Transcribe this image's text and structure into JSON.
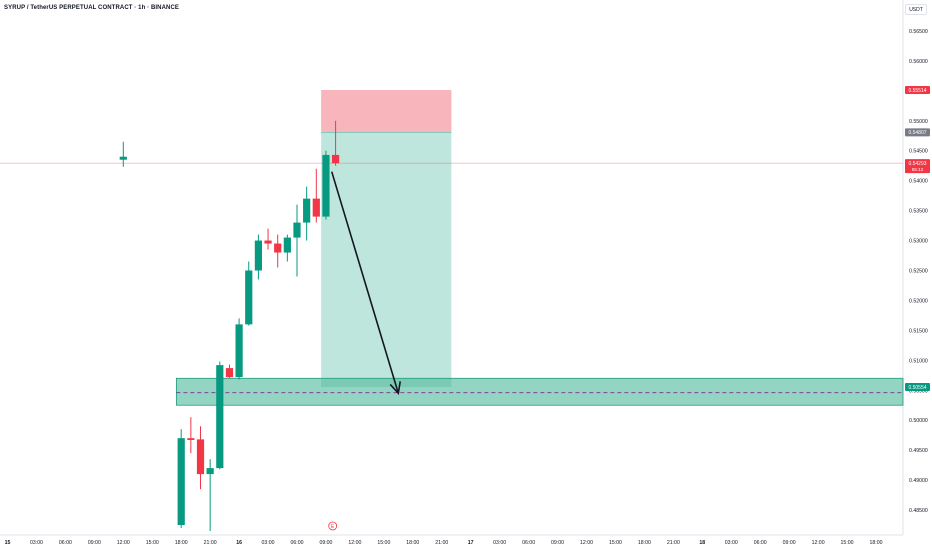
{
  "header": {
    "title": "SYRUP / TetherUS PERPETUAL CONTRACT · 1h · BINANCE",
    "currency": "USDT"
  },
  "price_tags": {
    "stop": "0.55514",
    "entry": "0.54807",
    "last_price": "0.54293",
    "last_countdown": "55:12",
    "target": "0.50554"
  },
  "event_marker": "E",
  "chart_data": {
    "type": "candlestick",
    "title": "SYRUP / TetherUS PERPETUAL CONTRACT · 1h · BINANCE",
    "ylim": [
      0.4825,
      0.5685
    ],
    "y_ticks": [
      "0.56500",
      "0.56000",
      "0.55500",
      "0.55000",
      "0.54500",
      "0.54000",
      "0.53500",
      "0.53000",
      "0.52500",
      "0.52000",
      "0.51500",
      "0.51000",
      "0.50500",
      "0.50000",
      "0.49500",
      "0.49000",
      "0.48500"
    ],
    "x_ticks": [
      "15",
      "03:00",
      "06:00",
      "09:00",
      "12:00",
      "15:00",
      "18:00",
      "21:00",
      "16",
      "03:00",
      "06:00",
      "09:00",
      "12:00",
      "15:00",
      "18:00",
      "21:00",
      "17",
      "03:00",
      "06:00",
      "09:00",
      "12:00",
      "15:00",
      "18:00",
      "21:00",
      "18",
      "03:00",
      "06:00",
      "09:00",
      "12:00",
      "15:00",
      "18:00"
    ],
    "colors": {
      "up": "#089981",
      "down": "#f23645",
      "stop_zone": "#f7a9b0",
      "target_zone": "#9dd8cb",
      "zone_border": "#1e9b7c"
    },
    "candles": [
      {
        "t": 12.0,
        "o": 0.5435,
        "h": 0.5465,
        "l": 0.5423,
        "c": 0.544
      },
      {
        "t": 18.0,
        "o": 0.4825,
        "h": 0.4985,
        "l": 0.482,
        "c": 0.497
      },
      {
        "t": 19.0,
        "o": 0.497,
        "h": 0.5005,
        "l": 0.4945,
        "c": 0.4967
      },
      {
        "t": 20.0,
        "o": 0.4968,
        "h": 0.499,
        "l": 0.4885,
        "c": 0.491
      },
      {
        "t": 21.0,
        "o": 0.491,
        "h": 0.4935,
        "l": 0.4815,
        "c": 0.492
      },
      {
        "t": 22.0,
        "o": 0.492,
        "h": 0.5098,
        "l": 0.4918,
        "c": 0.5092
      },
      {
        "t": 23.0,
        "o": 0.5087,
        "h": 0.5093,
        "l": 0.507,
        "c": 0.5072
      },
      {
        "t": 24.0,
        "o": 0.5072,
        "h": 0.517,
        "l": 0.5068,
        "c": 0.516
      },
      {
        "t": 25.0,
        "o": 0.516,
        "h": 0.5265,
        "l": 0.5158,
        "c": 0.525
      },
      {
        "t": 26.0,
        "o": 0.525,
        "h": 0.531,
        "l": 0.5235,
        "c": 0.53
      },
      {
        "t": 27.0,
        "o": 0.53,
        "h": 0.532,
        "l": 0.5285,
        "c": 0.5295
      },
      {
        "t": 28.0,
        "o": 0.5295,
        "h": 0.531,
        "l": 0.5255,
        "c": 0.528
      },
      {
        "t": 29.0,
        "o": 0.528,
        "h": 0.531,
        "l": 0.5265,
        "c": 0.5305
      },
      {
        "t": 30.0,
        "o": 0.5305,
        "h": 0.536,
        "l": 0.524,
        "c": 0.533
      },
      {
        "t": 31.0,
        "o": 0.533,
        "h": 0.539,
        "l": 0.53,
        "c": 0.537
      },
      {
        "t": 32.0,
        "o": 0.537,
        "h": 0.542,
        "l": 0.533,
        "c": 0.534
      },
      {
        "t": 33.0,
        "o": 0.534,
        "h": 0.545,
        "l": 0.5335,
        "c": 0.5443
      },
      {
        "t": 34.0,
        "o": 0.5443,
        "h": 0.55,
        "l": 0.5425,
        "c": 0.5429
      }
    ],
    "position": {
      "type": "short",
      "start_t": 32.5,
      "end_t": 46.0,
      "stop": 0.55514,
      "entry": 0.54807,
      "target": 0.50554
    },
    "support_zone": {
      "top": 0.507,
      "bottom": 0.5025,
      "start_t": 17.5,
      "mid": 0.50459
    },
    "arrow": {
      "from": [
        33.6,
        0.5415
      ],
      "to": [
        40.5,
        0.5045
      ]
    },
    "last_price": 0.54293
  }
}
